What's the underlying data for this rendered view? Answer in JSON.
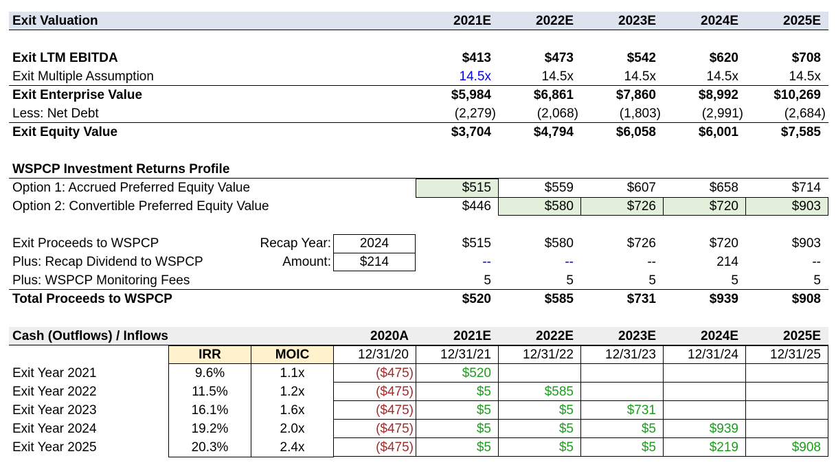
{
  "header": {
    "title": "Exit Valuation",
    "years": [
      "2021E",
      "2022E",
      "2023E",
      "2024E",
      "2025E"
    ]
  },
  "valuation": {
    "ltm_ebitda": {
      "label": "Exit LTM EBITDA",
      "values": [
        "$413",
        "$473",
        "$542",
        "$620",
        "$708"
      ]
    },
    "multiple": {
      "label": "Exit Multiple Assumption",
      "values": [
        "14.5x",
        "14.5x",
        "14.5x",
        "14.5x",
        "14.5x"
      ]
    },
    "ev": {
      "label": "Exit Enterprise Value",
      "values": [
        "$5,984",
        "$6,861",
        "$7,860",
        "$8,992",
        "$10,269"
      ]
    },
    "net_debt": {
      "label": "Less: Net Debt",
      "values": [
        "(2,279)",
        "(2,068)",
        "(1,803)",
        "(2,991)",
        "(2,684)"
      ]
    },
    "equity": {
      "label": "Exit Equity Value",
      "values": [
        "$3,704",
        "$4,794",
        "$6,058",
        "$6,001",
        "$7,585"
      ]
    }
  },
  "returns_profile": {
    "title": "WSPCP Investment Returns Profile",
    "option1": {
      "label": "Option 1: Accrued Preferred Equity Value",
      "values": [
        "$515",
        "$559",
        "$607",
        "$658",
        "$714"
      ]
    },
    "option2": {
      "label": "Option 2: Convertible Preferred Equity Value",
      "values": [
        "$446",
        "$580",
        "$726",
        "$720",
        "$903"
      ]
    }
  },
  "proceeds": {
    "exit": {
      "label": "Exit Proceeds to WSPCP",
      "values": [
        "$515",
        "$580",
        "$726",
        "$720",
        "$903"
      ]
    },
    "recap": {
      "label": "Plus: Recap Dividend to WSPCP",
      "values": [
        "--",
        "--",
        "--",
        "214",
        "--"
      ]
    },
    "fees": {
      "label": "Plus: WSPCP Monitoring Fees",
      "values": [
        "5",
        "5",
        "5",
        "5",
        "5"
      ]
    },
    "total": {
      "label": "Total Proceeds to WSPCP",
      "values": [
        "$520",
        "$585",
        "$731",
        "$939",
        "$908"
      ]
    },
    "recap_year_label": "Recap Year:",
    "recap_year": "2024",
    "amount_label": "Amount:",
    "amount": "$214"
  },
  "cash_flows": {
    "title": "Cash (Outflows) / Inflows",
    "irr_header": "IRR",
    "moic_header": "MOIC",
    "periods": [
      "2020A",
      "2021E",
      "2022E",
      "2023E",
      "2024E",
      "2025E"
    ],
    "dates": [
      "12/31/20",
      "12/31/21",
      "12/31/22",
      "12/31/23",
      "12/31/24",
      "12/31/25"
    ],
    "rows": [
      {
        "label": "Exit Year 2021",
        "irr": "9.6%",
        "moic": "1.1x",
        "flows": [
          "($475)",
          "$520",
          "",
          "",
          "",
          ""
        ]
      },
      {
        "label": "Exit Year 2022",
        "irr": "11.5%",
        "moic": "1.2x",
        "flows": [
          "($475)",
          "$5",
          "$585",
          "",
          "",
          ""
        ]
      },
      {
        "label": "Exit Year 2023",
        "irr": "16.1%",
        "moic": "1.6x",
        "flows": [
          "($475)",
          "$5",
          "$5",
          "$731",
          "",
          ""
        ]
      },
      {
        "label": "Exit Year 2024",
        "irr": "19.2%",
        "moic": "2.0x",
        "flows": [
          "($475)",
          "$5",
          "$5",
          "$5",
          "$939",
          ""
        ]
      },
      {
        "label": "Exit Year 2025",
        "irr": "20.3%",
        "moic": "2.4x",
        "flows": [
          "($475)",
          "$5",
          "$5",
          "$5",
          "$219",
          "$908"
        ]
      }
    ]
  },
  "colors": {
    "header_band": "#dde3ee",
    "gray_band": "#eeeeee",
    "highlight_green": "#e2efda",
    "highlight_yellow": "#fff2cc",
    "input_blue": "#0000ff",
    "outflow_red": "#a52a2a",
    "inflow_green": "#1a9e1a"
  }
}
